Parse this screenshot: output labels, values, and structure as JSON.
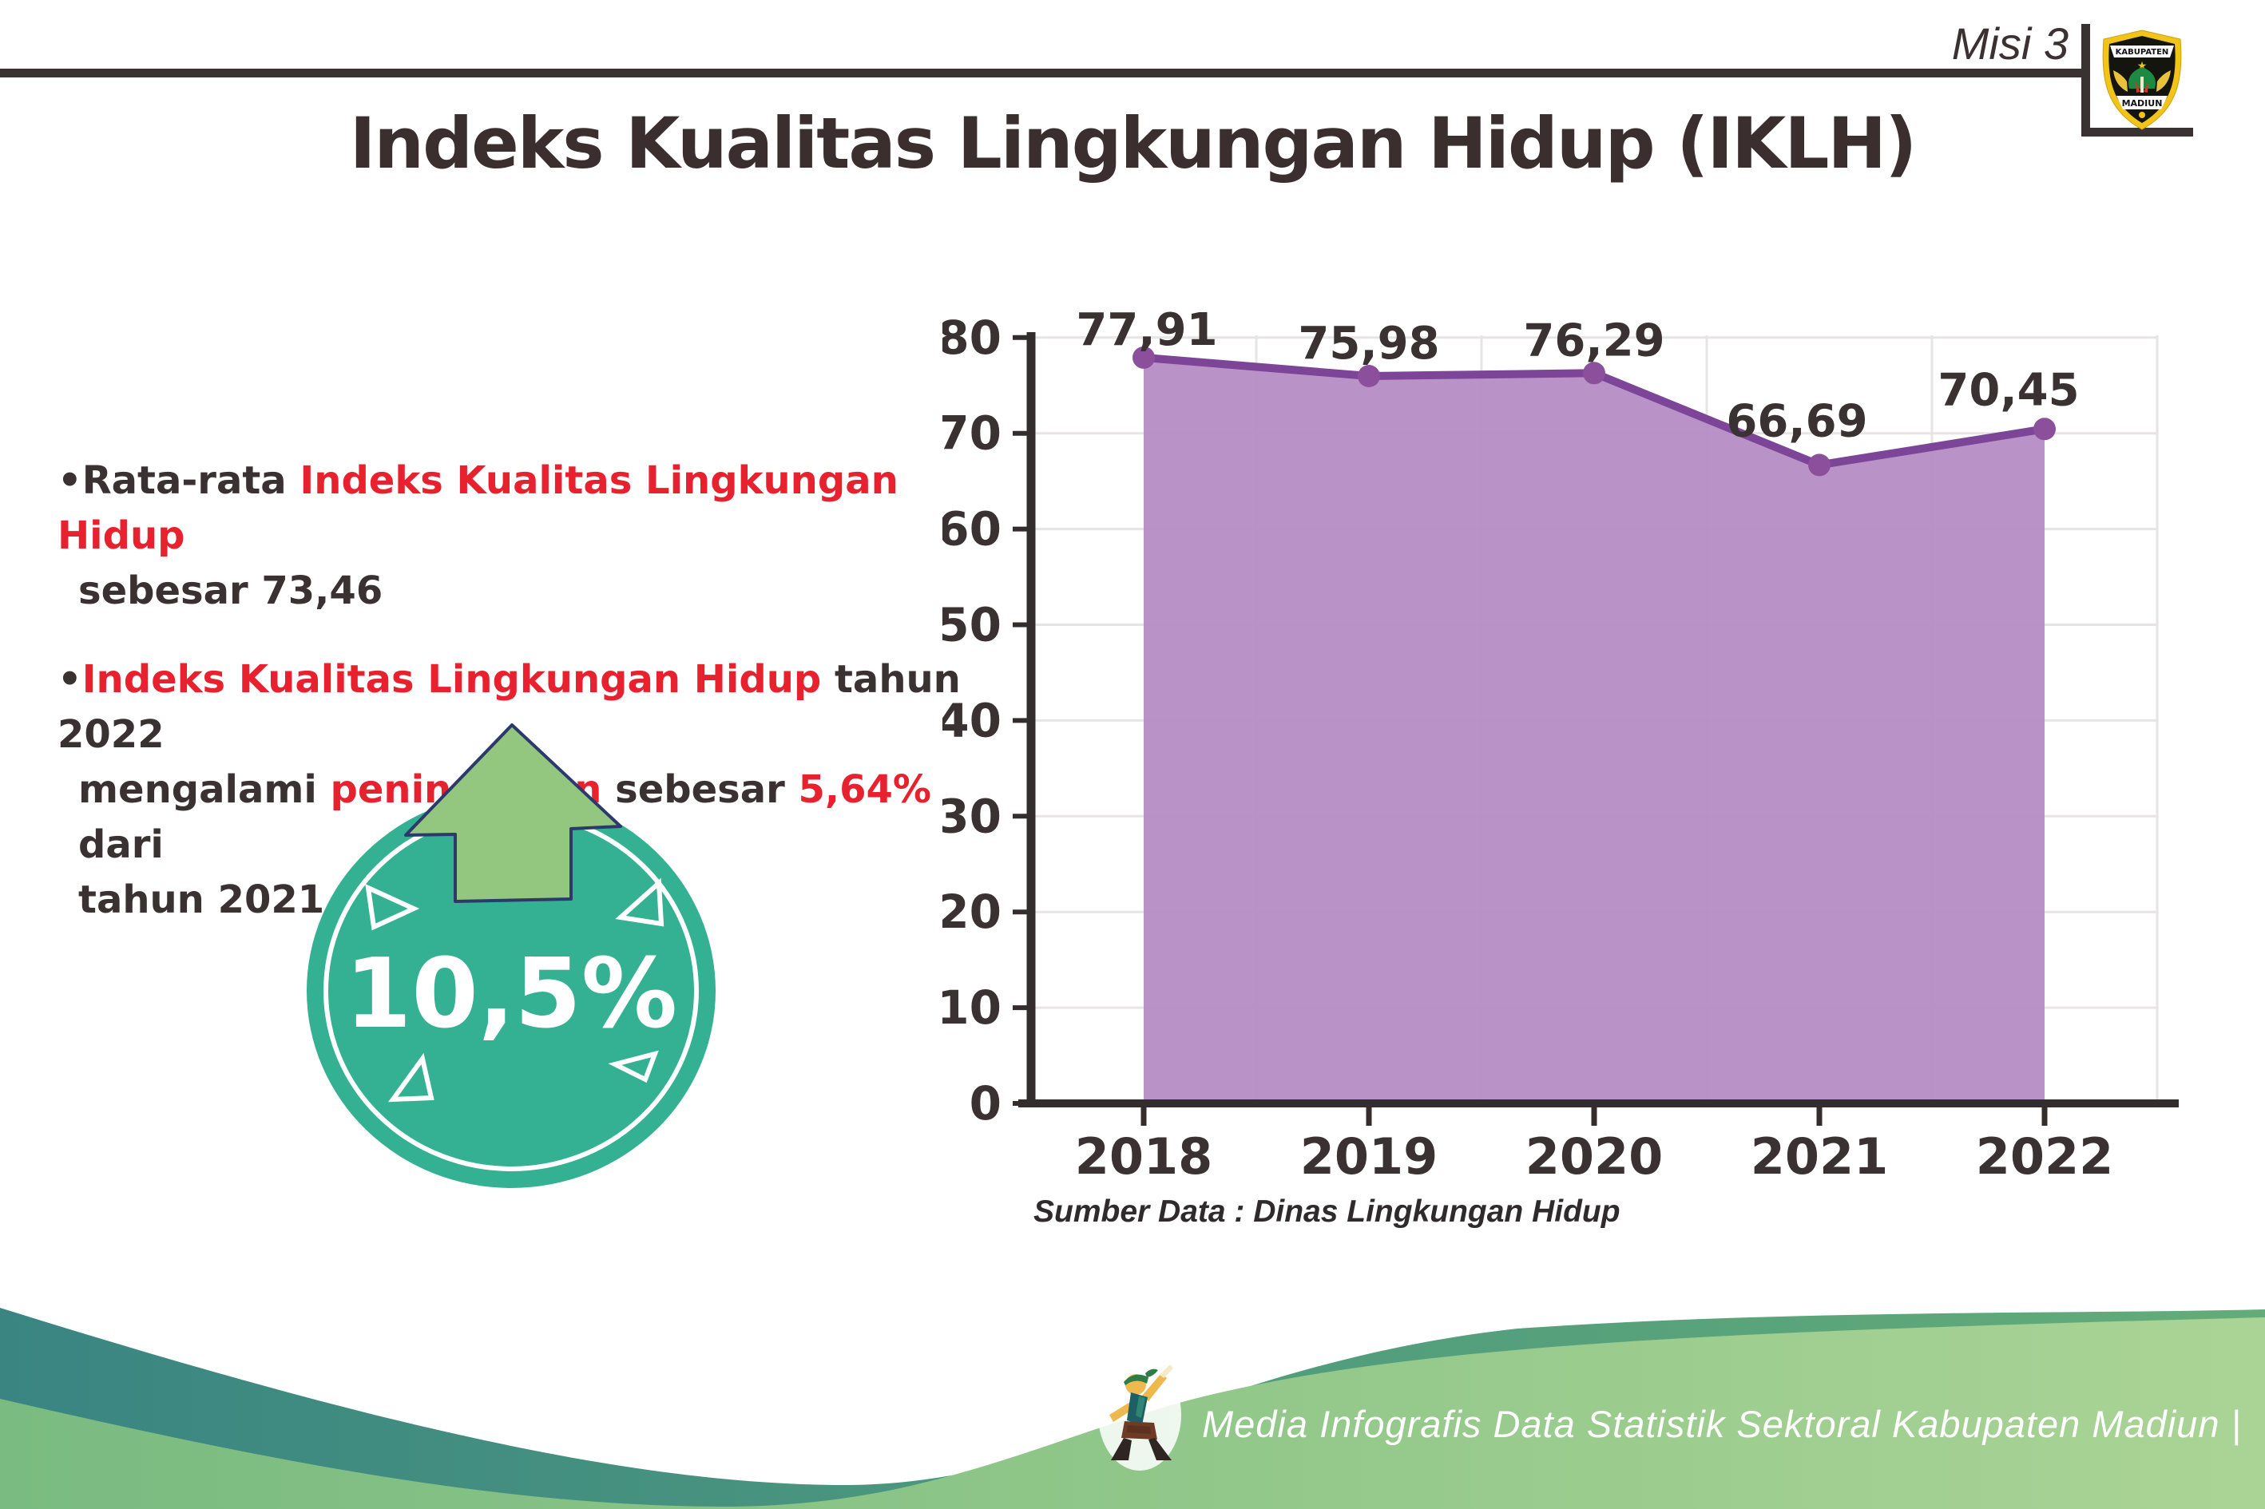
{
  "header": {
    "misi": "Misi 3",
    "title": "Indeks Kualitas Lingkungan Hidup (IKLH)",
    "logo_top": "KABUPATEN",
    "logo_bottom": "MADIUN"
  },
  "bullets": {
    "b1": {
      "black1": "Rata-rata ",
      "red1": "Indeks Kualitas Lingkungan Hidup",
      "line2": "sebesar 73,46"
    },
    "b2": {
      "red1": "Indeks Kualitas Lingkungan Hidup",
      "black1": " tahun 2022",
      "l2_black1": "mengalami ",
      "l2_red1": "peningkatan",
      "l2_black2": " sebesar ",
      "l2_red2": "5,64%",
      "l2_black3": " dari",
      "line3": "tahun 2021"
    },
    "marker": "•"
  },
  "badge": {
    "value": "10,5%",
    "circle_color": "#34b192",
    "arrow_color": "#93c67e",
    "arrow_outline": "#2c3a6b"
  },
  "chart_data": {
    "type": "area",
    "title": "",
    "categories": [
      "2018",
      "2019",
      "2020",
      "2021",
      "2022"
    ],
    "values": [
      77.91,
      75.98,
      76.29,
      66.69,
      70.45
    ],
    "point_labels": [
      "77,91",
      "75,98",
      "76,29",
      "66,69",
      "70,45"
    ],
    "xlabel": "",
    "ylabel": "",
    "ylim": [
      0,
      80
    ],
    "ytick_step": 10,
    "grid": true,
    "legend": "none",
    "source": "Sumber Data : Dinas Lingkungan Hidup",
    "colors": {
      "area": "#b58cc4",
      "line": "#7c4597",
      "dot": "#8b4f9c",
      "label": "#3a3132",
      "axis": "#332d2e",
      "grid": "#e7e4e5",
      "tick_label": "#3a3132"
    }
  },
  "footer": {
    "credit": "Media Infografis Data Statistik Sektoral Kabupaten Madiun |",
    "teal_left": "#3a8582",
    "teal_right": "#63ac79",
    "green_left": "#7abb81",
    "green_right": "#aad496"
  }
}
